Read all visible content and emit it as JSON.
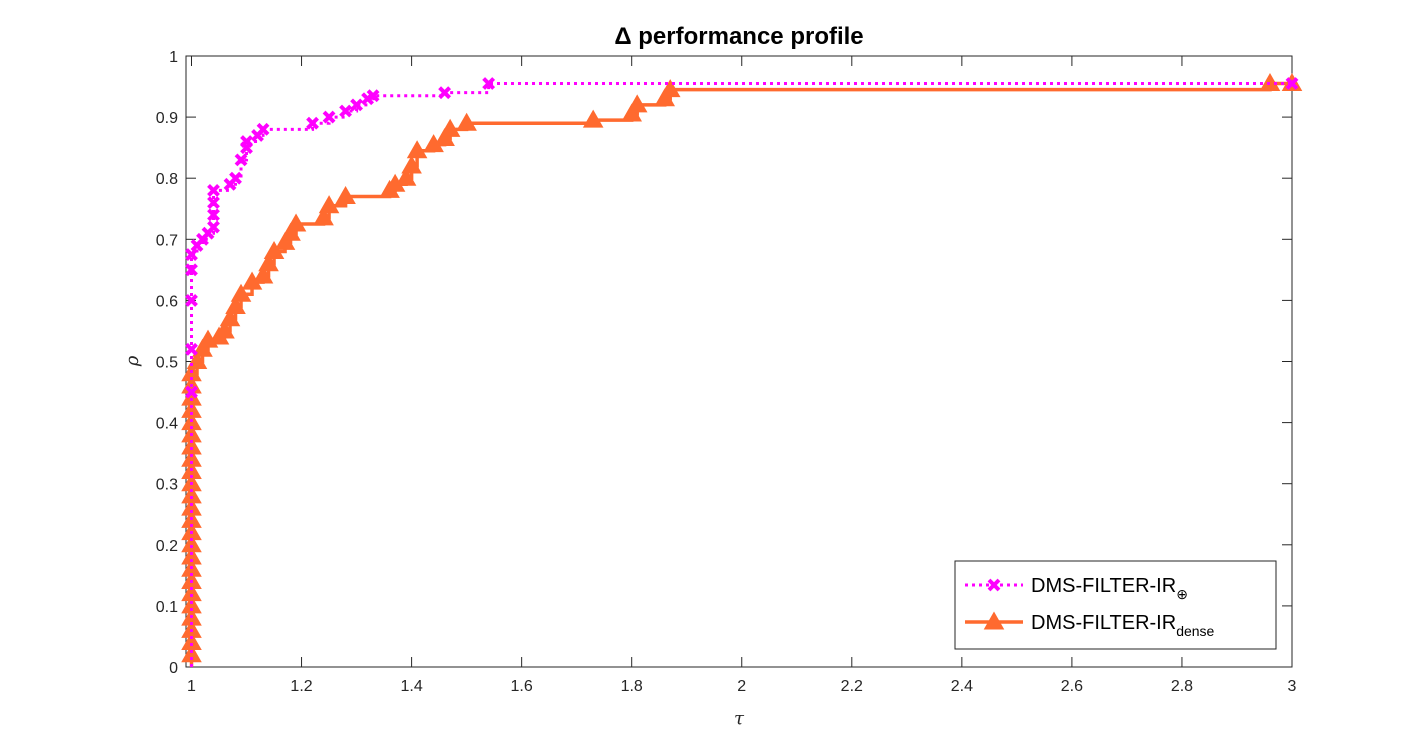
{
  "chart_data": {
    "type": "line",
    "title": "Δ performance profile",
    "xlabel": "τ",
    "ylabel": "ρ",
    "xlim": [
      0.99,
      3
    ],
    "ylim": [
      0,
      1
    ],
    "xticks": [
      "1",
      "1.2",
      "1.4",
      "1.6",
      "1.8",
      "2",
      "2.2",
      "2.4",
      "2.6",
      "2.8",
      "3"
    ],
    "yticks": [
      "0",
      "0.1",
      "0.2",
      "0.3",
      "0.4",
      "0.5",
      "0.6",
      "0.7",
      "0.8",
      "0.9",
      "1"
    ],
    "grid": false,
    "legend_position": "bottom-right",
    "series": [
      {
        "name": "DMS-FILTER-IR",
        "name_sub": "⊕",
        "color": "#ff00ff",
        "line_style": "dotted",
        "marker": "x",
        "points": [
          [
            1.0,
            0.0
          ],
          [
            1.0,
            0.45
          ],
          [
            1.0,
            0.52
          ],
          [
            1.0,
            0.6
          ],
          [
            1.0,
            0.65
          ],
          [
            1.0,
            0.675
          ],
          [
            1.01,
            0.69
          ],
          [
            1.02,
            0.7
          ],
          [
            1.03,
            0.71
          ],
          [
            1.04,
            0.72
          ],
          [
            1.04,
            0.74
          ],
          [
            1.04,
            0.76
          ],
          [
            1.04,
            0.78
          ],
          [
            1.07,
            0.79
          ],
          [
            1.08,
            0.8
          ],
          [
            1.09,
            0.83
          ],
          [
            1.1,
            0.85
          ],
          [
            1.1,
            0.86
          ],
          [
            1.12,
            0.87
          ],
          [
            1.13,
            0.88
          ],
          [
            1.22,
            0.89
          ],
          [
            1.25,
            0.9
          ],
          [
            1.28,
            0.91
          ],
          [
            1.3,
            0.92
          ],
          [
            1.32,
            0.93
          ],
          [
            1.33,
            0.935
          ],
          [
            1.46,
            0.94
          ],
          [
            1.54,
            0.955
          ],
          [
            3.0,
            0.955
          ]
        ]
      },
      {
        "name": "DMS-FILTER-IR",
        "name_sub": "dense",
        "color": "#ff6a2f",
        "line_style": "solid",
        "marker": "triangle",
        "points": [
          [
            1.0,
            0.0
          ],
          [
            1.0,
            0.02
          ],
          [
            1.0,
            0.04
          ],
          [
            1.0,
            0.06
          ],
          [
            1.0,
            0.08
          ],
          [
            1.0,
            0.1
          ],
          [
            1.0,
            0.12
          ],
          [
            1.0,
            0.14
          ],
          [
            1.0,
            0.16
          ],
          [
            1.0,
            0.18
          ],
          [
            1.0,
            0.2
          ],
          [
            1.0,
            0.22
          ],
          [
            1.0,
            0.24
          ],
          [
            1.0,
            0.26
          ],
          [
            1.0,
            0.28
          ],
          [
            1.0,
            0.3
          ],
          [
            1.0,
            0.32
          ],
          [
            1.0,
            0.34
          ],
          [
            1.0,
            0.36
          ],
          [
            1.0,
            0.38
          ],
          [
            1.0,
            0.4
          ],
          [
            1.0,
            0.42
          ],
          [
            1.0,
            0.44
          ],
          [
            1.0,
            0.46
          ],
          [
            1.0,
            0.48
          ],
          [
            1.01,
            0.5
          ],
          [
            1.02,
            0.52
          ],
          [
            1.03,
            0.535
          ],
          [
            1.05,
            0.54
          ],
          [
            1.06,
            0.55
          ],
          [
            1.07,
            0.57
          ],
          [
            1.08,
            0.59
          ],
          [
            1.09,
            0.61
          ],
          [
            1.11,
            0.63
          ],
          [
            1.13,
            0.64
          ],
          [
            1.14,
            0.66
          ],
          [
            1.15,
            0.68
          ],
          [
            1.17,
            0.695
          ],
          [
            1.18,
            0.71
          ],
          [
            1.19,
            0.725
          ],
          [
            1.24,
            0.735
          ],
          [
            1.25,
            0.755
          ],
          [
            1.28,
            0.77
          ],
          [
            1.36,
            0.78
          ],
          [
            1.37,
            0.79
          ],
          [
            1.39,
            0.8
          ],
          [
            1.4,
            0.82
          ],
          [
            1.41,
            0.845
          ],
          [
            1.44,
            0.855
          ],
          [
            1.46,
            0.865
          ],
          [
            1.47,
            0.88
          ],
          [
            1.5,
            0.89
          ],
          [
            1.73,
            0.895
          ],
          [
            1.8,
            0.905
          ],
          [
            1.81,
            0.92
          ],
          [
            1.86,
            0.93
          ],
          [
            1.87,
            0.945
          ],
          [
            2.96,
            0.955
          ],
          [
            3.0,
            0.955
          ]
        ]
      }
    ]
  }
}
